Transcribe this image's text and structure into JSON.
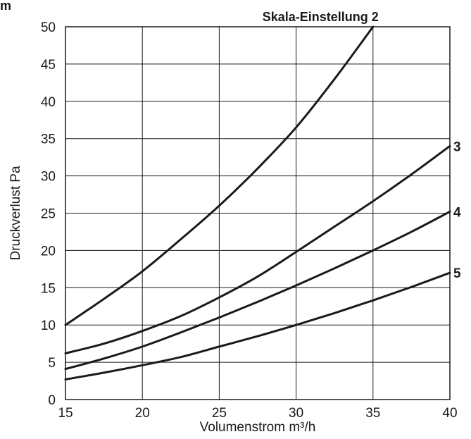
{
  "corner_text": "m",
  "chart_data": {
    "type": "line",
    "title": "",
    "xlabel": "Volumenstrom m³/h",
    "ylabel": "Druckverlust Pa",
    "xlim": [
      15,
      40
    ],
    "ylim": [
      0,
      50
    ],
    "x_ticks": [
      15,
      20,
      25,
      30,
      35,
      40
    ],
    "y_ticks": [
      0,
      5,
      10,
      15,
      20,
      25,
      30,
      35,
      40,
      45,
      50
    ],
    "grid": true,
    "series": [
      {
        "name": "Skala-Einstellung 2",
        "x": [
          15,
          17.5,
          20,
          22.5,
          25,
          27.5,
          30,
          32.5,
          35
        ],
        "values": [
          10,
          13.5,
          17.2,
          21.5,
          26,
          31,
          36.5,
          43,
          50
        ]
      },
      {
        "name": "3",
        "x": [
          15,
          17.5,
          20,
          22.5,
          25,
          27.5,
          30,
          32.5,
          35,
          37.5,
          40
        ],
        "values": [
          6.2,
          7.5,
          9.2,
          11.2,
          13.7,
          16.5,
          19.8,
          23.2,
          26.6,
          30.2,
          34
        ]
      },
      {
        "name": "4",
        "x": [
          15,
          17.5,
          20,
          22.5,
          25,
          27.5,
          30,
          32.5,
          35,
          37.5,
          40
        ],
        "values": [
          4.1,
          5.5,
          7.1,
          9,
          11,
          13.1,
          15.3,
          17.6,
          20,
          22.5,
          25.2
        ]
      },
      {
        "name": "5",
        "x": [
          15,
          17.5,
          20,
          22.5,
          25,
          27.5,
          30,
          32.5,
          35,
          37.5,
          40
        ],
        "values": [
          2.7,
          3.6,
          4.6,
          5.7,
          7.1,
          8.5,
          10,
          11.6,
          13.3,
          15.1,
          17
        ]
      }
    ],
    "colors": {
      "line": "#1a1a1a",
      "grid": "#1a1a1a",
      "background": "#ffffff"
    }
  }
}
